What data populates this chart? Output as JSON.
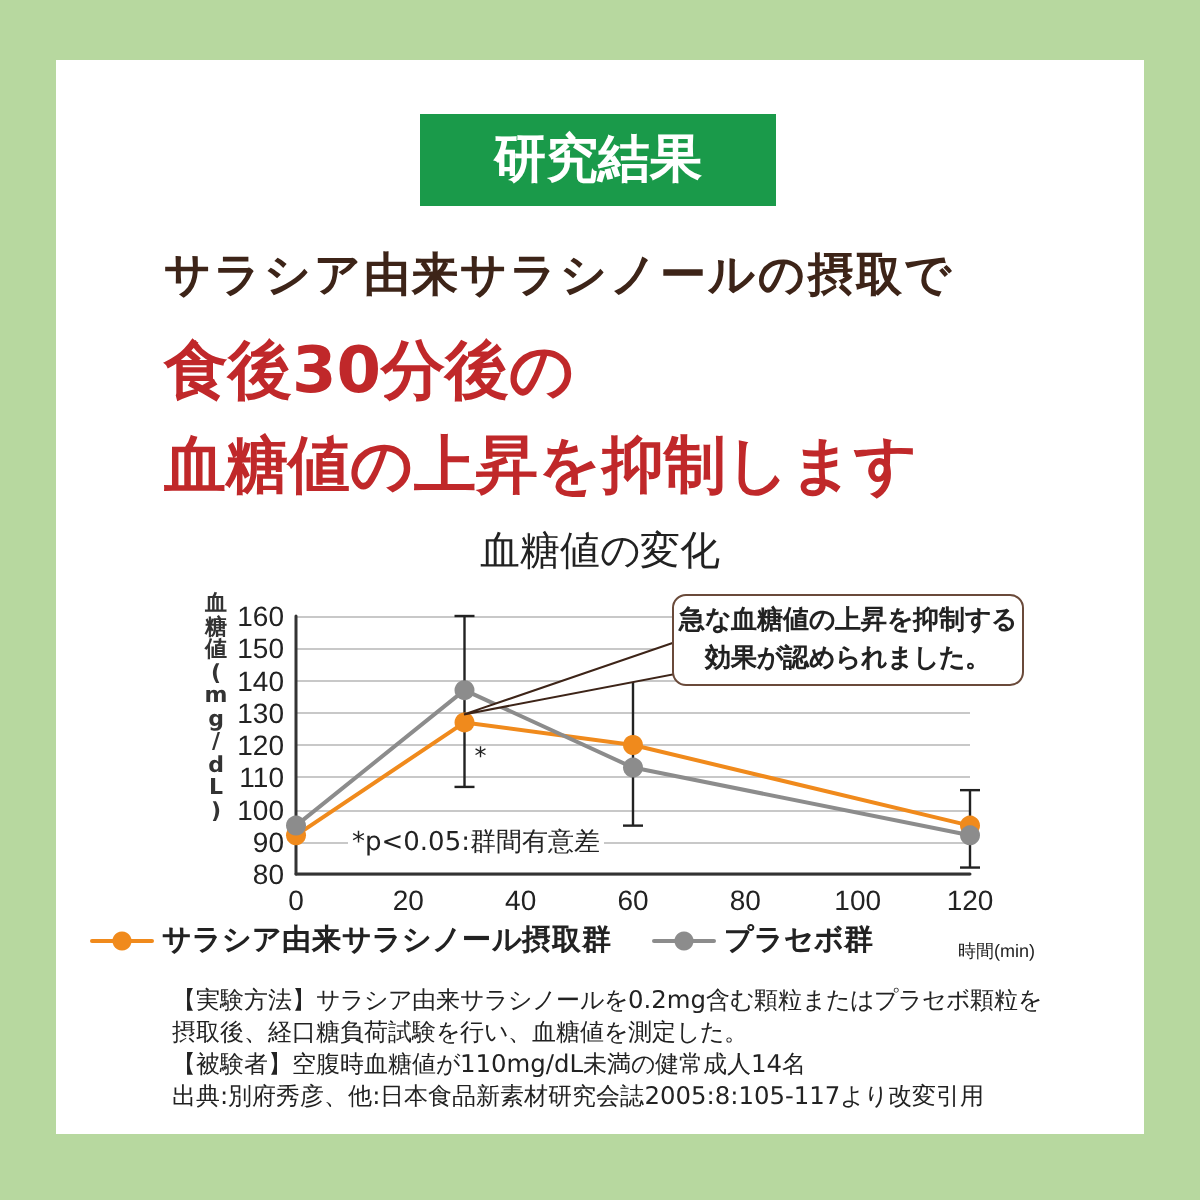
{
  "chart_data": {
    "type": "line",
    "title": "血糖値の変化",
    "xlabel": "時間(min)",
    "ylabel": "血糖値(mg/dL)",
    "x": [
      0,
      30,
      60,
      120
    ],
    "series": [
      {
        "name": "サラシア由来サラシノール摂取群",
        "color": "#f08a1c",
        "values": [
          92,
          127,
          120,
          95
        ],
        "errors": [
          null,
          null,
          [
            95,
            146
          ],
          null
        ]
      },
      {
        "name": "プラセボ群",
        "color": "#8c8c8c",
        "values": [
          95,
          137,
          113,
          92
        ],
        "errors": [
          null,
          [
            107,
            160
          ],
          null,
          [
            82,
            106
          ]
        ]
      }
    ],
    "xlim": [
      0,
      120
    ],
    "xticks": [
      0,
      20,
      40,
      60,
      80,
      100,
      120
    ],
    "ylim": [
      80,
      160
    ],
    "yticks": [
      80,
      90,
      100,
      110,
      120,
      130,
      140,
      150,
      160
    ],
    "grid": "y",
    "legend": "bottom",
    "marker": "circle",
    "line_style": "solid",
    "annotations": [
      "研究結果",
      "サラシア由来サラシノールの摂取で",
      "食後30分後の",
      "血糖値の上昇を抑制します",
      {
        "text": "急な血糖値の上昇を抑制する効果が認められました。",
        "x": 30,
        "y": 127
      },
      {
        "text": "*",
        "x": 30,
        "y": 116
      },
      "*p<0.05:群間有意差",
      "【実験方法】サラシア由来サラシノールを0.2mg含む顆粒またはプラセボ顆粒を摂取後、経口糖負荷試験を行い、血糖値を測定した。",
      "【被験者】空腹時血糖値が110mg/dL未満の健常成人14名",
      "出典:別府秀彦、他:日本食品新素材研究会誌2005:8:105-117より改変引用"
    ]
  }
}
